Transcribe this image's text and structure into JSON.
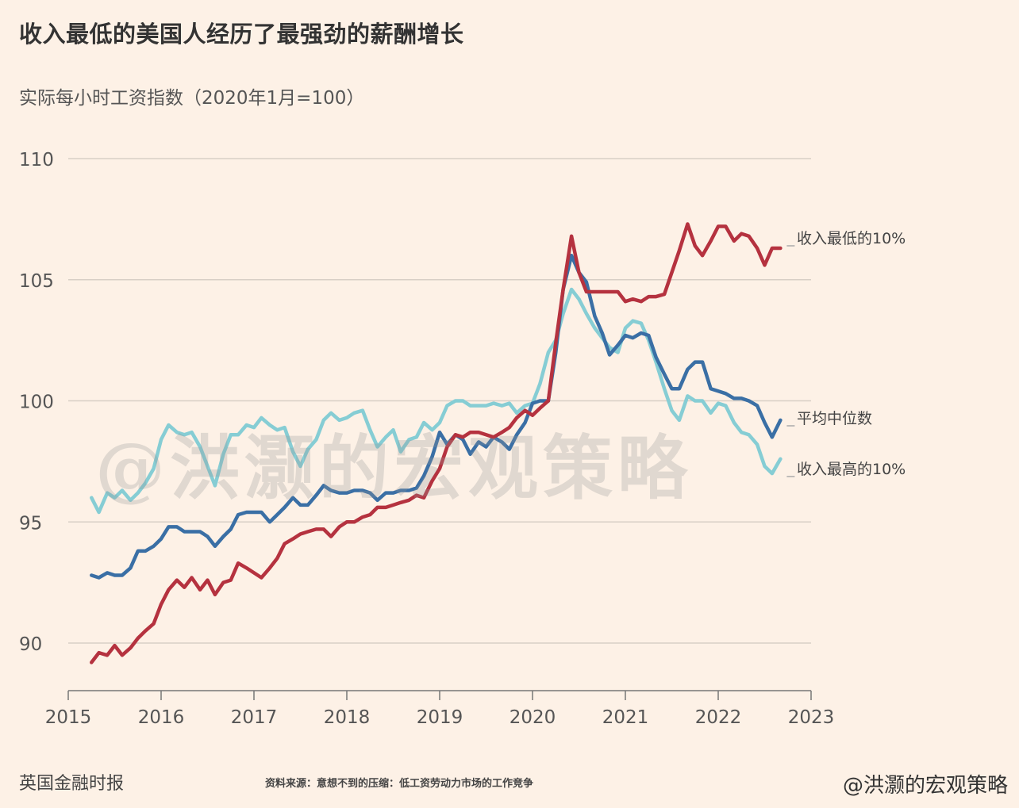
{
  "header": {
    "title": "收入最低的美国人经历了最强劲的薪酬增长",
    "subtitle": "实际每小时工资指数（2020年1月=100）"
  },
  "footer": {
    "publisher": "英国金融时报",
    "source": "资料来源：意想不到的压缩：低工资劳动力市场的工作竞争",
    "handle": "@洪灏的宏观策略"
  },
  "watermark": "@洪灏的宏观策略",
  "colors": {
    "background": "#fdf1e6",
    "grid": "#d8cfc6",
    "lowest": "#b5323f",
    "median": "#3a6fa5",
    "highest": "#86cdd4"
  },
  "chart_data": {
    "type": "line",
    "xlim": [
      2015,
      2023
    ],
    "ylim": [
      88,
      110
    ],
    "x_ticks": [
      "2015",
      "2016",
      "2017",
      "2018",
      "2019",
      "2020",
      "2021",
      "2022",
      "2023"
    ],
    "y_ticks": [
      "90",
      "95",
      "100",
      "105",
      "110"
    ],
    "grid": true,
    "legend": "line-end labels",
    "series": [
      {
        "name": "收入最低的10%",
        "color": "#b5323f",
        "x": [
          2015.25,
          2015.33,
          2015.42,
          2015.5,
          2015.58,
          2015.67,
          2015.75,
          2015.83,
          2015.92,
          2016.0,
          2016.08,
          2016.17,
          2016.25,
          2016.33,
          2016.42,
          2016.5,
          2016.58,
          2016.67,
          2016.75,
          2016.83,
          2016.92,
          2017.0,
          2017.08,
          2017.17,
          2017.25,
          2017.33,
          2017.42,
          2017.5,
          2017.58,
          2017.67,
          2017.75,
          2017.83,
          2017.92,
          2018.0,
          2018.08,
          2018.17,
          2018.25,
          2018.33,
          2018.42,
          2018.5,
          2018.58,
          2018.67,
          2018.75,
          2018.83,
          2018.92,
          2019.0,
          2019.08,
          2019.17,
          2019.25,
          2019.33,
          2019.42,
          2019.5,
          2019.58,
          2019.67,
          2019.75,
          2019.83,
          2019.92,
          2020.0,
          2020.08,
          2020.17,
          2020.25,
          2020.33,
          2020.42,
          2020.5,
          2020.58,
          2020.67,
          2020.75,
          2020.83,
          2020.92,
          2021.0,
          2021.08,
          2021.17,
          2021.25,
          2021.33,
          2021.42,
          2021.5,
          2021.58,
          2021.67,
          2021.75,
          2021.83,
          2021.92,
          2022.0,
          2022.08,
          2022.17,
          2022.25,
          2022.33,
          2022.42,
          2022.5,
          2022.58,
          2022.67
        ],
        "y": [
          89.2,
          89.6,
          89.5,
          89.9,
          89.5,
          89.8,
          90.2,
          90.5,
          90.8,
          91.6,
          92.2,
          92.6,
          92.3,
          92.7,
          92.2,
          92.6,
          92.0,
          92.5,
          92.6,
          93.3,
          93.1,
          92.9,
          92.7,
          93.1,
          93.5,
          94.1,
          94.3,
          94.5,
          94.6,
          94.7,
          94.7,
          94.4,
          94.8,
          95.0,
          95.0,
          95.2,
          95.3,
          95.6,
          95.6,
          95.7,
          95.8,
          95.9,
          96.1,
          96.0,
          96.7,
          97.2,
          98.1,
          98.6,
          98.5,
          98.7,
          98.7,
          98.6,
          98.5,
          98.7,
          98.9,
          99.3,
          99.6,
          99.4,
          99.7,
          100.0,
          102.4,
          104.6,
          106.8,
          105.3,
          104.5,
          104.5,
          104.5,
          104.5,
          104.5,
          104.1,
          104.2,
          104.1,
          104.3,
          104.3,
          104.4,
          105.3,
          106.2,
          107.3,
          106.4,
          106.0,
          106.6,
          107.2,
          107.2,
          106.6,
          106.9,
          106.8,
          106.3,
          105.6,
          106.3,
          106.3
        ]
      },
      {
        "name": "平均中位数",
        "color": "#3a6fa5",
        "x": [
          2015.25,
          2015.33,
          2015.42,
          2015.5,
          2015.58,
          2015.67,
          2015.75,
          2015.83,
          2015.92,
          2016.0,
          2016.08,
          2016.17,
          2016.25,
          2016.33,
          2016.42,
          2016.5,
          2016.58,
          2016.67,
          2016.75,
          2016.83,
          2016.92,
          2017.0,
          2017.08,
          2017.17,
          2017.25,
          2017.33,
          2017.42,
          2017.5,
          2017.58,
          2017.67,
          2017.75,
          2017.83,
          2017.92,
          2018.0,
          2018.08,
          2018.17,
          2018.25,
          2018.33,
          2018.42,
          2018.5,
          2018.58,
          2018.67,
          2018.75,
          2018.83,
          2018.92,
          2019.0,
          2019.08,
          2019.17,
          2019.25,
          2019.33,
          2019.42,
          2019.5,
          2019.58,
          2019.67,
          2019.75,
          2019.83,
          2019.92,
          2020.0,
          2020.08,
          2020.17,
          2020.25,
          2020.33,
          2020.42,
          2020.5,
          2020.58,
          2020.67,
          2020.75,
          2020.83,
          2020.92,
          2021.0,
          2021.08,
          2021.17,
          2021.25,
          2021.33,
          2021.42,
          2021.5,
          2021.58,
          2021.67,
          2021.75,
          2021.83,
          2021.92,
          2022.0,
          2022.08,
          2022.17,
          2022.25,
          2022.33,
          2022.42,
          2022.5,
          2022.58,
          2022.67
        ],
        "y": [
          92.8,
          92.7,
          92.9,
          92.8,
          92.8,
          93.1,
          93.8,
          93.8,
          94.0,
          94.3,
          94.8,
          94.8,
          94.6,
          94.6,
          94.6,
          94.4,
          94.0,
          94.4,
          94.7,
          95.3,
          95.4,
          95.4,
          95.4,
          95.0,
          95.3,
          95.6,
          96.0,
          95.7,
          95.7,
          96.1,
          96.5,
          96.3,
          96.2,
          96.2,
          96.3,
          96.3,
          96.2,
          95.9,
          96.2,
          96.2,
          96.3,
          96.3,
          96.4,
          96.9,
          97.7,
          98.7,
          98.2,
          98.6,
          98.4,
          97.8,
          98.3,
          98.1,
          98.5,
          98.3,
          98.0,
          98.6,
          99.1,
          99.9,
          100.0,
          100.0,
          102.0,
          104.6,
          106.0,
          105.3,
          104.9,
          103.5,
          102.8,
          101.9,
          102.3,
          102.7,
          102.6,
          102.8,
          102.7,
          101.8,
          101.1,
          100.5,
          100.5,
          101.3,
          101.6,
          101.6,
          100.5,
          100.4,
          100.3,
          100.1,
          100.1,
          100.0,
          99.8,
          99.1,
          98.5,
          99.2
        ]
      },
      {
        "name": "收入最高的10%",
        "color": "#86cdd4",
        "x": [
          2015.25,
          2015.33,
          2015.42,
          2015.5,
          2015.58,
          2015.67,
          2015.75,
          2015.83,
          2015.92,
          2016.0,
          2016.08,
          2016.17,
          2016.25,
          2016.33,
          2016.42,
          2016.5,
          2016.58,
          2016.67,
          2016.75,
          2016.83,
          2016.92,
          2017.0,
          2017.08,
          2017.17,
          2017.25,
          2017.33,
          2017.42,
          2017.5,
          2017.58,
          2017.67,
          2017.75,
          2017.83,
          2017.92,
          2018.0,
          2018.08,
          2018.17,
          2018.25,
          2018.33,
          2018.42,
          2018.5,
          2018.58,
          2018.67,
          2018.75,
          2018.83,
          2018.92,
          2019.0,
          2019.08,
          2019.17,
          2019.25,
          2019.33,
          2019.42,
          2019.5,
          2019.58,
          2019.67,
          2019.75,
          2019.83,
          2019.92,
          2020.0,
          2020.08,
          2020.17,
          2020.25,
          2020.33,
          2020.42,
          2020.5,
          2020.58,
          2020.67,
          2020.75,
          2020.83,
          2020.92,
          2021.0,
          2021.08,
          2021.17,
          2021.25,
          2021.33,
          2021.42,
          2021.5,
          2021.58,
          2021.67,
          2021.75,
          2021.83,
          2021.92,
          2022.0,
          2022.08,
          2022.17,
          2022.25,
          2022.33,
          2022.42,
          2022.5,
          2022.58,
          2022.67
        ],
        "y": [
          96.0,
          95.4,
          96.2,
          96.0,
          96.3,
          95.9,
          96.2,
          96.6,
          97.2,
          98.4,
          99.0,
          98.7,
          98.6,
          98.7,
          98.1,
          97.3,
          96.5,
          97.8,
          98.6,
          98.6,
          99.0,
          98.9,
          99.3,
          99.0,
          98.8,
          98.9,
          97.9,
          97.3,
          98.0,
          98.4,
          99.2,
          99.5,
          99.2,
          99.3,
          99.5,
          99.6,
          98.8,
          98.1,
          98.5,
          98.8,
          97.9,
          98.4,
          98.5,
          99.1,
          98.8,
          99.1,
          99.8,
          100.0,
          100.0,
          99.8,
          99.8,
          99.8,
          99.9,
          99.8,
          99.9,
          99.5,
          99.8,
          99.9,
          100.7,
          102.0,
          102.5,
          103.6,
          104.6,
          104.2,
          103.6,
          103.0,
          102.6,
          102.2,
          102.0,
          103.0,
          103.3,
          103.2,
          102.5,
          101.6,
          100.5,
          99.6,
          99.2,
          100.2,
          100.0,
          100.0,
          99.5,
          99.9,
          99.8,
          99.1,
          98.7,
          98.6,
          98.2,
          97.3,
          97.0,
          97.6
        ]
      }
    ]
  }
}
